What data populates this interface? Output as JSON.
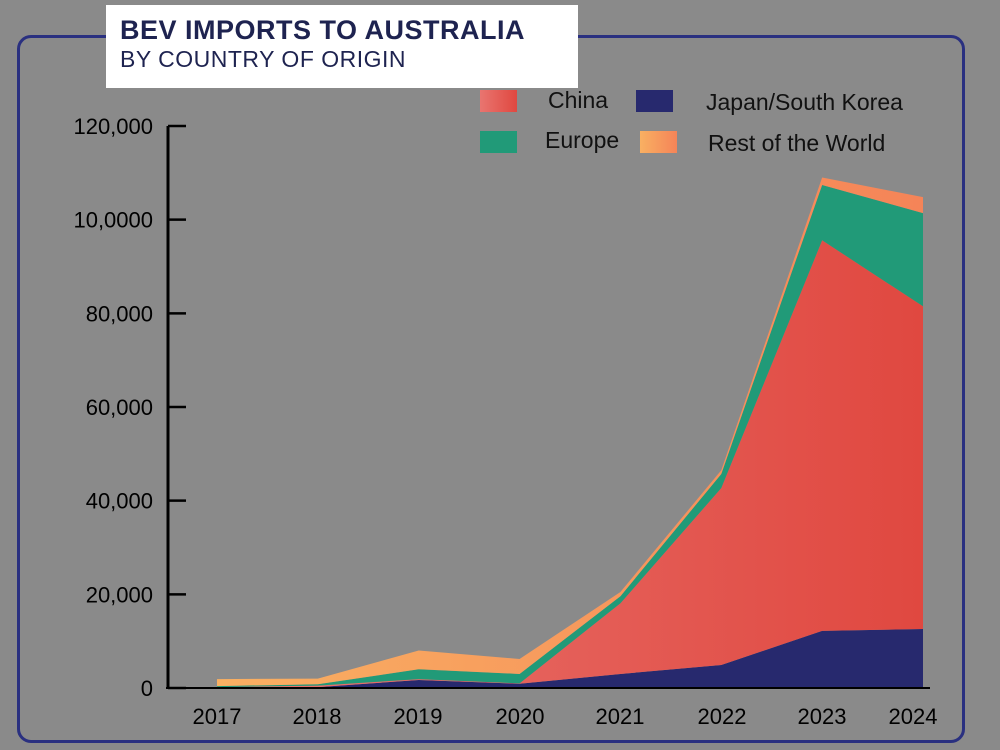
{
  "chart_data": {
    "type": "area",
    "stacked": true,
    "title": "BEV IMPORTS TO AUSTRALIA",
    "subtitle": "BY COUNTRY OF ORIGIN",
    "x": [
      "2017",
      "2018",
      "2019",
      "2020",
      "2021",
      "2022",
      "2023",
      "2024"
    ],
    "y_tick_labels": [
      "0",
      "20,000",
      "40,000",
      "60,000",
      "80,000",
      "10,0000",
      "120,000"
    ],
    "y_tick_values": [
      0,
      20000,
      40000,
      60000,
      80000,
      100000,
      120000
    ],
    "ylim": [
      0,
      120000
    ],
    "grid": false,
    "legend_position": "top-right",
    "series": [
      {
        "name": "Japan/South Korea",
        "color": "#27296e",
        "values": [
          100,
          200,
          1700,
          900,
          3000,
          4900,
          12200,
          12600
        ]
      },
      {
        "name": "China",
        "color": "#e4564f",
        "values": [
          100,
          300,
          200,
          100,
          15100,
          37800,
          83400,
          68900
        ]
      },
      {
        "name": "Europe",
        "color": "#219a78",
        "values": [
          200,
          300,
          2100,
          2000,
          1500,
          3000,
          11800,
          19900
        ]
      },
      {
        "name": "Rest of the World",
        "color": "#f7a35e",
        "values": [
          1500,
          1200,
          4000,
          3200,
          900,
          800,
          1600,
          3400
        ]
      }
    ],
    "legend_order": [
      "China",
      "Japan/South Korea",
      "Europe",
      "Rest of the World"
    ]
  }
}
